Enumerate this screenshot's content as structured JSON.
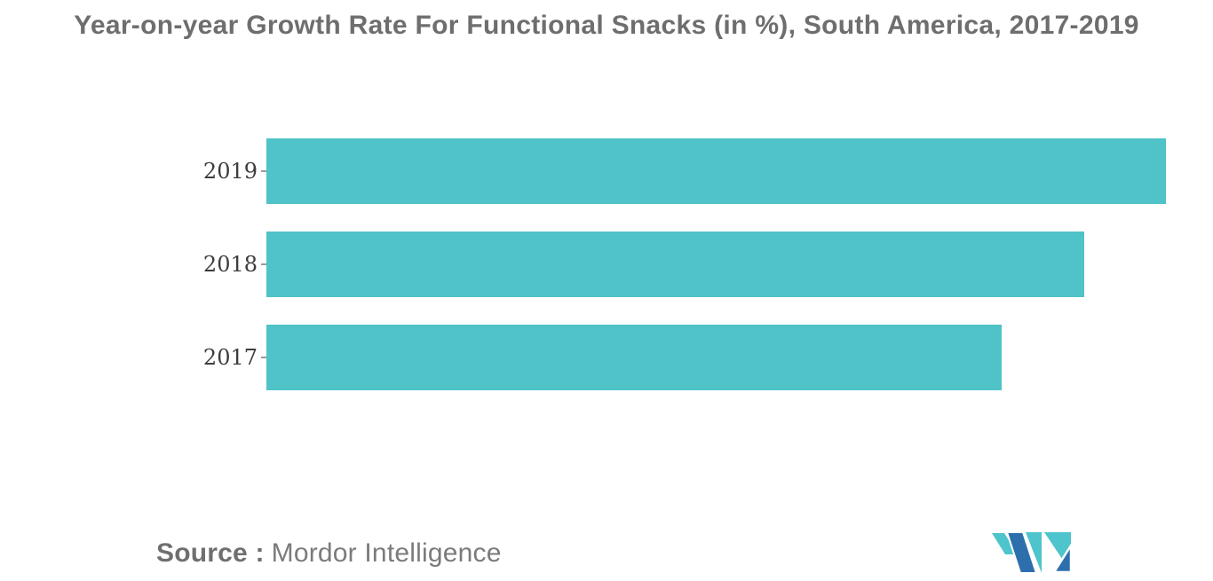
{
  "header": {
    "title": "Year-on-year Growth Rate For Functional Snacks (in %), South America, 2017-2019"
  },
  "chart_data": {
    "type": "bar",
    "orientation": "horizontal",
    "title": "Year-on-year Growth Rate For Functional Snacks (in %), South America, 2017-2019",
    "categories": [
      "2019",
      "2018",
      "2017"
    ],
    "values": [
      5.5,
      5.0,
      4.5
    ],
    "value_unit": "%",
    "xlabel": "",
    "ylabel": "",
    "xlim": [
      0,
      5.79
    ],
    "value_axis_shown": false,
    "grid": false,
    "legend": false,
    "bar_color": "#4FC3C8"
  },
  "footer": {
    "source_label": "Source :",
    "source_value": "Mordor Intelligence",
    "logo_name": "mordor-intelligence-logo",
    "logo_colors": {
      "blue": "#2D6FAD",
      "teal": "#4EC4CC"
    }
  },
  "colors": {
    "background": "#FFFFFF",
    "title_text": "#6E6E6E",
    "axis_label_text": "#3D3D3D",
    "source_text": "#7B7B7B",
    "tick": "#9A9A9A"
  }
}
